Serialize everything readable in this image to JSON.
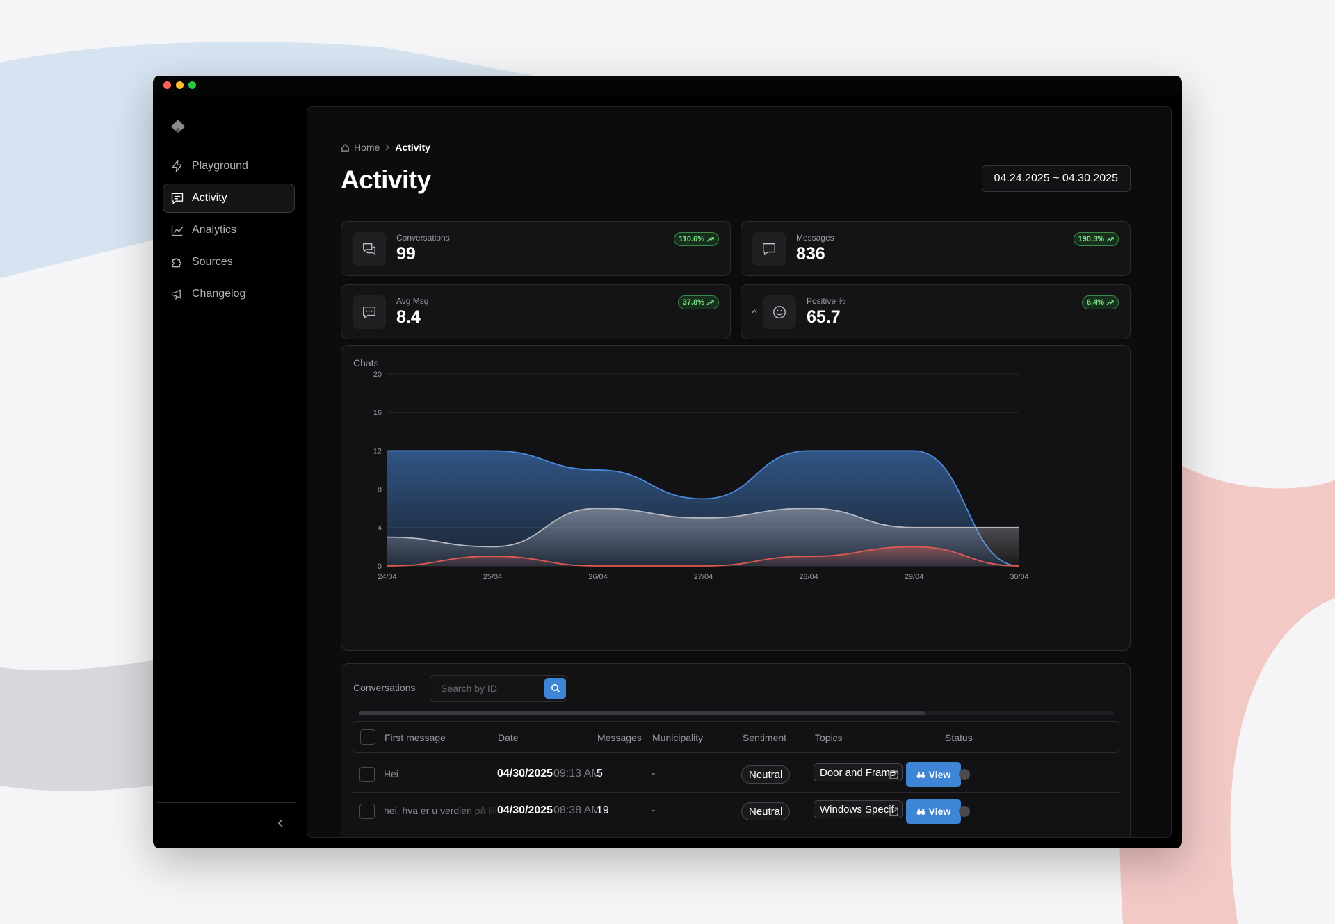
{
  "window": {
    "traffic_lights": [
      "#ff5f57",
      "#febc2e",
      "#28c840"
    ]
  },
  "sidebar": {
    "items": [
      {
        "label": "Playground",
        "icon": "bolt-icon",
        "active": false
      },
      {
        "label": "Activity",
        "icon": "message-square-icon",
        "active": true
      },
      {
        "label": "Analytics",
        "icon": "trending-up-icon",
        "active": false
      },
      {
        "label": "Sources",
        "icon": "puzzle-icon",
        "active": false
      },
      {
        "label": "Changelog",
        "icon": "megaphone-icon",
        "active": false
      }
    ]
  },
  "breadcrumb": {
    "home": "Home",
    "current": "Activity"
  },
  "page": {
    "title": "Activity",
    "date_range": "04.24.2025 ~ 04.30.2025"
  },
  "stats": [
    {
      "label": "Conversations",
      "value": "99",
      "change": "110.6%",
      "icon": "messages-icon"
    },
    {
      "label": "Messages",
      "value": "836",
      "change": "190.3%",
      "icon": "message-icon"
    },
    {
      "label": "Avg Msg",
      "value": "8.4",
      "change": "37.8%",
      "icon": "message-text-icon"
    },
    {
      "label": "Positive %",
      "value": "65.7",
      "change": "6.4%",
      "icon": "smile-icon"
    }
  ],
  "chart_data": {
    "type": "area",
    "title": "Chats",
    "x": [
      "24/04",
      "25/04",
      "26/04",
      "27/04",
      "28/04",
      "29/04",
      "30/04"
    ],
    "ylim": [
      0,
      20
    ],
    "yticks": [
      0,
      4,
      8,
      12,
      16,
      20
    ],
    "grid": true,
    "series": [
      {
        "values": [
          12,
          12,
          10,
          7,
          12,
          12,
          0
        ],
        "color": "#4a8be0"
      },
      {
        "values": [
          3,
          2,
          6,
          5,
          6,
          4,
          4
        ],
        "color": "#b8b8c0"
      },
      {
        "values": [
          0,
          1,
          0,
          0,
          1,
          2,
          0
        ],
        "color": "#e05a52"
      }
    ]
  },
  "conversations": {
    "title": "Conversations",
    "search_placeholder": "Search by ID",
    "columns": [
      "First message",
      "Date",
      "Messages",
      "Municipality",
      "Sentiment",
      "Topics",
      "Status"
    ],
    "rows": [
      {
        "first_message": "Hei",
        "date": "04/30/2025",
        "time": "09:13 AM",
        "messages": "5",
        "municipality": "-",
        "sentiment": "Neutral",
        "topic": "Door and Frame",
        "view": "View"
      },
      {
        "first_message": "hei, hva er u verdien på lill",
        "date": "04/30/2025",
        "time": "08:38 AM",
        "messages": "19",
        "municipality": "-",
        "sentiment": "Neutral",
        "topic": "Windows Specif",
        "view": "View"
      }
    ]
  }
}
